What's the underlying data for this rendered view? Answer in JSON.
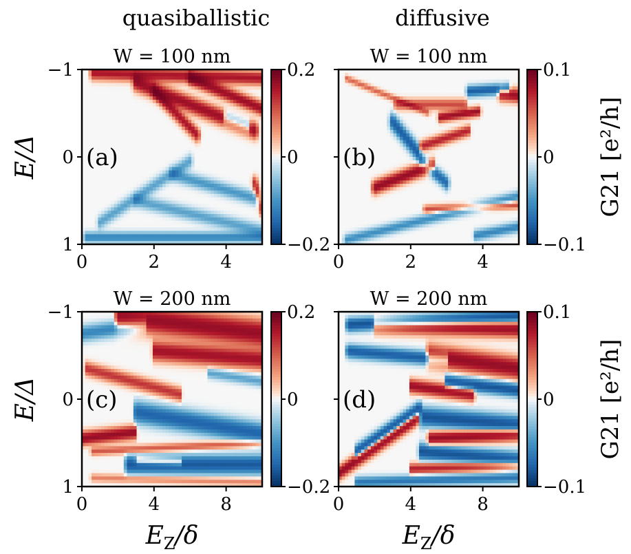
{
  "figure": {
    "column_titles": [
      "quasiballistic",
      "diffusive"
    ],
    "colorbar_label": "G21 [e²/h]"
  },
  "chart_data": [
    {
      "type": "heatmap",
      "panel": "(a)",
      "title": "W = 100 nm",
      "column": "quasiballistic",
      "xlabel": "",
      "ylabel": "E/Δ",
      "xlim": [
        0,
        5
      ],
      "ylim": [
        -1,
        1
      ],
      "xticks": [
        "0",
        "2",
        "4"
      ],
      "yticks": [
        "−1",
        "0",
        "1"
      ],
      "colorbar": {
        "min": -0.2,
        "max": 0.2,
        "ticks": [
          "0.2",
          "0",
          "−0.2"
        ],
        "cmap": "RdBu_r"
      },
      "features": [
        {
          "sign": 1,
          "x0": 0.3,
          "y0": 0.96,
          "x1": 5.0,
          "y1": 0.9,
          "amp": 0.8,
          "w": 0.05
        },
        {
          "sign": 1,
          "x0": 1.5,
          "y0": 0.85,
          "x1": 4.8,
          "y1": 0.3,
          "amp": 0.9,
          "w": 0.06
        },
        {
          "sign": 1,
          "x0": 2.0,
          "y0": 0.75,
          "x1": 3.2,
          "y1": 0.25,
          "amp": 0.8,
          "w": 0.05
        },
        {
          "sign": 1,
          "x0": 3.0,
          "y0": 0.9,
          "x1": 5.0,
          "y1": 0.55,
          "amp": 0.9,
          "w": 0.05
        },
        {
          "sign": -1,
          "x0": 4.0,
          "y0": 0.45,
          "x1": 4.6,
          "y1": 0.35,
          "amp": 0.9,
          "w": 0.05
        },
        {
          "sign": -1,
          "x0": 0.1,
          "y0": -0.92,
          "x1": 5.0,
          "y1": -0.92,
          "amp": 0.5,
          "w": 0.04
        },
        {
          "sign": -1,
          "x0": 0.5,
          "y0": -0.75,
          "x1": 3.0,
          "y1": -0.05,
          "amp": 0.35,
          "w": 0.05
        },
        {
          "sign": -1,
          "x0": 1.5,
          "y0": -0.5,
          "x1": 5.0,
          "y1": -0.85,
          "amp": 0.35,
          "w": 0.05
        },
        {
          "sign": -1,
          "x0": 2.5,
          "y0": -0.2,
          "x1": 5.0,
          "y1": -0.5,
          "amp": 0.4,
          "w": 0.05
        },
        {
          "sign": 1,
          "x0": 4.8,
          "y0": -0.3,
          "x1": 5.0,
          "y1": -0.6,
          "amp": 0.7,
          "w": 0.05
        }
      ]
    },
    {
      "type": "heatmap",
      "panel": "(b)",
      "title": "W = 100 nm",
      "column": "diffusive",
      "xlabel": "",
      "ylabel": "",
      "xlim": [
        0,
        5
      ],
      "ylim": [
        -1,
        1
      ],
      "xticks": [
        "0",
        "2",
        "4"
      ],
      "yticks": [],
      "colorbar": {
        "min": -0.1,
        "max": 0.1,
        "ticks": [
          "0.1",
          "0",
          "−0.1"
        ],
        "cmap": "RdBu_r"
      },
      "features": [
        {
          "sign": 1,
          "x0": 0.2,
          "y0": 0.9,
          "x1": 2.5,
          "y1": 0.5,
          "amp": 0.4,
          "w": 0.025
        },
        {
          "sign": 1,
          "x0": 1.6,
          "y0": 0.6,
          "x1": 3.5,
          "y1": 0.6,
          "amp": 0.5,
          "w": 0.04
        },
        {
          "sign": 1,
          "x0": 2.8,
          "y0": 0.45,
          "x1": 3.9,
          "y1": 0.52,
          "amp": 0.9,
          "w": 0.035
        },
        {
          "sign": -1,
          "x0": 3.6,
          "y0": 0.75,
          "x1": 4.7,
          "y1": 0.78,
          "amp": 0.8,
          "w": 0.04
        },
        {
          "sign": 1,
          "x0": 4.5,
          "y0": 0.72,
          "x1": 5.0,
          "y1": 0.7,
          "amp": 0.9,
          "w": 0.05
        },
        {
          "sign": -1,
          "x0": 1.5,
          "y0": 0.4,
          "x1": 2.2,
          "y1": 0.05,
          "amp": 0.8,
          "w": 0.06
        },
        {
          "sign": 1,
          "x0": 2.3,
          "y0": 0.12,
          "x1": 3.6,
          "y1": 0.3,
          "amp": 0.7,
          "w": 0.04
        },
        {
          "sign": 1,
          "x0": 1.0,
          "y0": -0.35,
          "x1": 2.6,
          "y1": -0.1,
          "amp": 0.95,
          "w": 0.05
        },
        {
          "sign": -1,
          "x0": 2.3,
          "y0": -0.05,
          "x1": 3.0,
          "y1": -0.3,
          "amp": 0.7,
          "w": 0.05
        },
        {
          "sign": -1,
          "x0": 0.2,
          "y0": -0.95,
          "x1": 5.0,
          "y1": -0.45,
          "amp": 0.45,
          "w": 0.04
        },
        {
          "sign": 1,
          "x0": 2.4,
          "y0": -0.6,
          "x1": 5.0,
          "y1": -0.55,
          "amp": 0.5,
          "w": 0.03
        },
        {
          "sign": -1,
          "x0": 3.8,
          "y0": -0.9,
          "x1": 5.0,
          "y1": -0.8,
          "amp": 0.5,
          "w": 0.04
        }
      ]
    },
    {
      "type": "heatmap",
      "panel": "(c)",
      "title": "W = 200 nm",
      "column": "quasiballistic",
      "xlabel": "E_Z/δ",
      "ylabel": "E/Δ",
      "xlim": [
        0,
        10
      ],
      "ylim": [
        -1,
        1
      ],
      "xticks": [
        "0",
        "4",
        "8"
      ],
      "yticks": [
        "−1",
        "0",
        "1"
      ],
      "colorbar": {
        "min": -0.2,
        "max": 0.2,
        "ticks": [
          "0.2",
          "0",
          "−0.2"
        ],
        "cmap": "RdBu_r"
      },
      "features": [
        {
          "sign": 1,
          "x0": 2.0,
          "y0": 0.95,
          "x1": 10.0,
          "y1": 0.75,
          "amp": 0.95,
          "w": 0.1
        },
        {
          "sign": 1,
          "x0": 4.0,
          "y0": 0.55,
          "x1": 10.0,
          "y1": 0.45,
          "amp": 0.85,
          "w": 0.07
        },
        {
          "sign": -1,
          "x0": 0.0,
          "y0": 0.75,
          "x1": 3.5,
          "y1": 0.85,
          "amp": 0.5,
          "w": 0.06
        },
        {
          "sign": 1,
          "x0": 0.2,
          "y0": 0.35,
          "x1": 5.5,
          "y1": 0.05,
          "amp": 0.6,
          "w": 0.05
        },
        {
          "sign": -1,
          "x0": 7.0,
          "y0": 0.3,
          "x1": 10.0,
          "y1": 0.2,
          "amp": 0.35,
          "w": 0.04
        },
        {
          "sign": 1,
          "x0": 0.0,
          "y0": -0.45,
          "x1": 3.0,
          "y1": -0.38,
          "amp": 0.95,
          "w": 0.05
        },
        {
          "sign": 1,
          "x0": 0.5,
          "y0": -0.6,
          "x1": 10.0,
          "y1": -0.5,
          "amp": 0.45,
          "w": 0.03
        },
        {
          "sign": -1,
          "x0": 3.0,
          "y0": -0.15,
          "x1": 10.0,
          "y1": -0.4,
          "amp": 0.75,
          "w": 0.08
        },
        {
          "sign": -1,
          "x0": 2.5,
          "y0": -0.75,
          "x1": 10.0,
          "y1": -0.75,
          "amp": 0.85,
          "w": 0.07
        },
        {
          "sign": 1,
          "x0": 3.0,
          "y0": -0.7,
          "x1": 5.5,
          "y1": -0.72,
          "amp": 0.7,
          "w": 0.03
        },
        {
          "sign": 1,
          "x0": 0.5,
          "y0": -0.9,
          "x1": 10.0,
          "y1": -0.95,
          "amp": 0.3,
          "w": 0.03
        }
      ]
    },
    {
      "type": "heatmap",
      "panel": "(d)",
      "title": "W = 200 nm",
      "column": "diffusive",
      "xlabel": "E_Z/δ",
      "ylabel": "",
      "xlim": [
        0,
        10
      ],
      "ylim": [
        -1,
        1
      ],
      "xticks": [
        "0",
        "4",
        "8"
      ],
      "yticks": [],
      "colorbar": {
        "min": -0.1,
        "max": 0.1,
        "ticks": [
          "0.1",
          "0",
          "−0.1"
        ],
        "cmap": "RdBu_r"
      },
      "features": [
        {
          "sign": -1,
          "x0": 0.5,
          "y0": 0.85,
          "x1": 10.0,
          "y1": 0.95,
          "amp": 0.9,
          "w": 0.05
        },
        {
          "sign": 1,
          "x0": 2.0,
          "y0": 0.85,
          "x1": 10.0,
          "y1": 0.8,
          "amp": 0.9,
          "w": 0.06
        },
        {
          "sign": -1,
          "x0": 0.5,
          "y0": 0.55,
          "x1": 6.0,
          "y1": 0.45,
          "amp": 0.8,
          "w": 0.05
        },
        {
          "sign": 1,
          "x0": 5.0,
          "y0": 0.5,
          "x1": 10.0,
          "y1": 0.35,
          "amp": 0.95,
          "w": 0.08
        },
        {
          "sign": -1,
          "x0": 6.0,
          "y0": 0.2,
          "x1": 10.0,
          "y1": 0.1,
          "amp": 0.9,
          "w": 0.05
        },
        {
          "sign": 1,
          "x0": 4.0,
          "y0": 0.15,
          "x1": 7.5,
          "y1": 0.05,
          "amp": 0.9,
          "w": 0.05
        },
        {
          "sign": -1,
          "x0": 1.0,
          "y0": -0.6,
          "x1": 4.5,
          "y1": -0.1,
          "amp": 0.9,
          "w": 0.05
        },
        {
          "sign": 1,
          "x0": 0.0,
          "y0": -0.85,
          "x1": 4.5,
          "y1": -0.2,
          "amp": 0.95,
          "w": 0.05
        },
        {
          "sign": -1,
          "x0": 4.5,
          "y0": -0.2,
          "x1": 10.0,
          "y1": -0.3,
          "amp": 0.9,
          "w": 0.07
        },
        {
          "sign": 1,
          "x0": 5.0,
          "y0": -0.45,
          "x1": 10.0,
          "y1": -0.4,
          "amp": 0.95,
          "w": 0.05
        },
        {
          "sign": -1,
          "x0": 4.5,
          "y0": -0.6,
          "x1": 10.0,
          "y1": -0.7,
          "amp": 0.9,
          "w": 0.06
        },
        {
          "sign": 1,
          "x0": 4.0,
          "y0": -0.8,
          "x1": 10.0,
          "y1": -0.75,
          "amp": 0.7,
          "w": 0.04
        },
        {
          "sign": -1,
          "x0": 1.0,
          "y0": -0.95,
          "x1": 10.0,
          "y1": -0.9,
          "amp": 0.6,
          "w": 0.04
        }
      ]
    }
  ]
}
